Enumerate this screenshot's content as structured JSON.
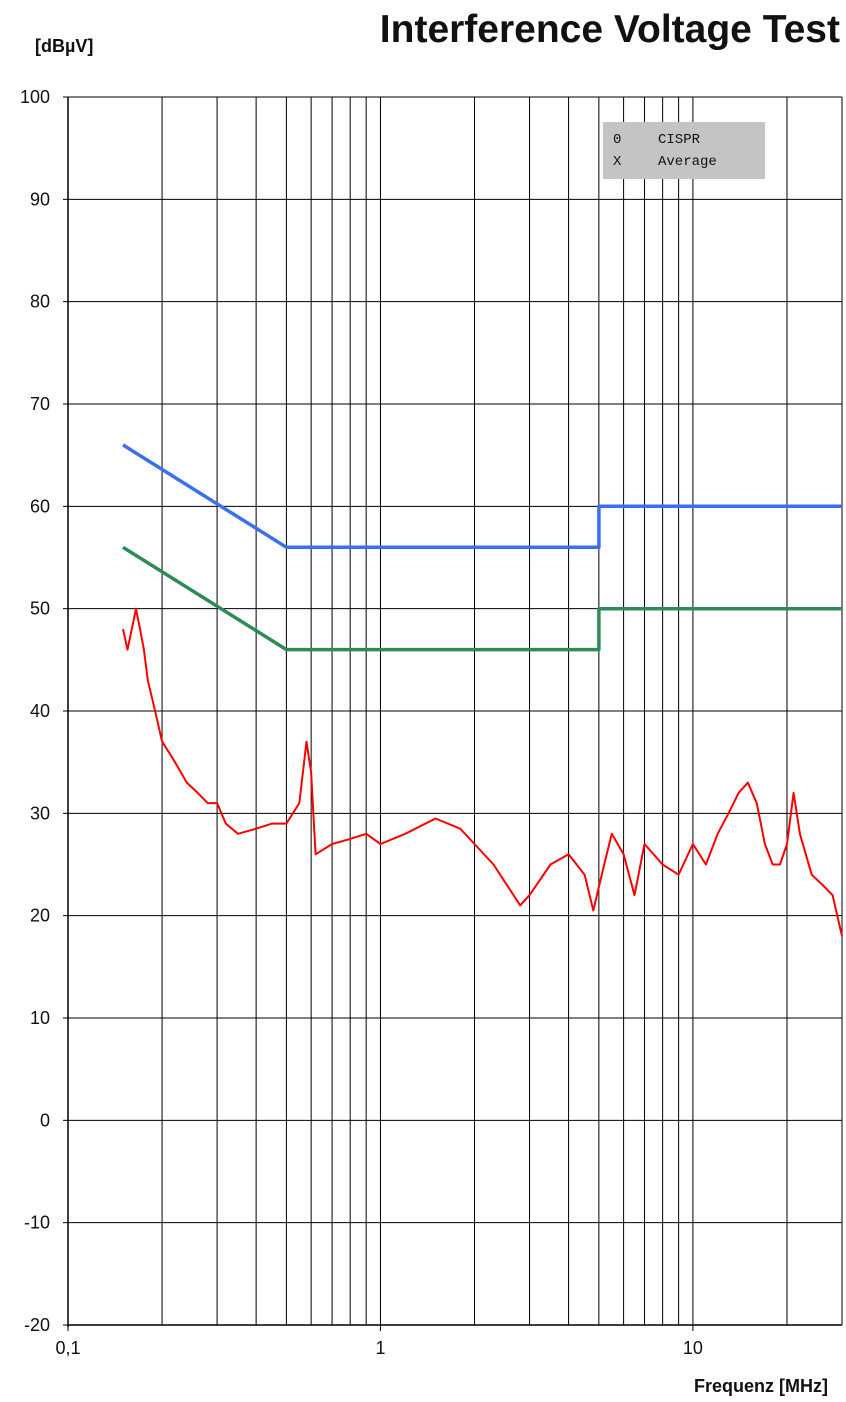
{
  "chart_data": {
    "type": "line",
    "title": "Interference Voltage Test",
    "ylabel": "[dBµV]",
    "xlabel": "Frequenz [MHz]",
    "x_scale": "log",
    "xlim": [
      0.1,
      30
    ],
    "ylim": [
      -20,
      100
    ],
    "y_ticks": [
      -20,
      -10,
      0,
      10,
      20,
      30,
      40,
      50,
      60,
      70,
      80,
      90,
      100
    ],
    "y_tick_labels": [
      "-20",
      "-10",
      "0",
      "10",
      "20",
      "30",
      "40",
      "50",
      "60",
      "70",
      "80",
      "90",
      "100"
    ],
    "x_ticks": [
      0.1,
      1,
      10
    ],
    "x_tick_labels": [
      "0,1",
      "1",
      "10"
    ],
    "grid": true,
    "legend_position": "top-right",
    "legend": [
      {
        "marker": "0",
        "label": "CISPR"
      },
      {
        "marker": "X",
        "label": "Average"
      }
    ],
    "series": [
      {
        "color": "#3a6ff0",
        "x": [
          0.15,
          0.5,
          5,
          5,
          30
        ],
        "values": [
          66,
          56,
          56,
          60,
          60
        ]
      },
      {
        "color": "#2e8b57",
        "x": [
          0.15,
          0.5,
          5,
          5,
          30
        ],
        "values": [
          56,
          46,
          46,
          50,
          50
        ]
      },
      {
        "color": "#ff0000",
        "x": [
          0.15,
          0.155,
          0.16,
          0.165,
          0.17,
          0.175,
          0.18,
          0.19,
          0.2,
          0.21,
          0.22,
          0.24,
          0.26,
          0.28,
          0.3,
          0.32,
          0.35,
          0.4,
          0.45,
          0.5,
          0.55,
          0.58,
          0.6,
          0.62,
          0.7,
          0.8,
          0.9,
          1,
          1.2,
          1.5,
          1.8,
          2,
          2.3,
          2.8,
          3,
          3.5,
          4,
          4.5,
          4.8,
          5.2,
          5.5,
          6,
          6.5,
          7,
          8,
          9,
          10,
          11,
          12,
          13,
          14,
          15,
          16,
          17,
          18,
          19,
          20,
          21,
          22,
          24,
          26,
          28,
          30
        ],
        "values": [
          48,
          46,
          48,
          50,
          48,
          46,
          43,
          40,
          37,
          36,
          35,
          33,
          32,
          31,
          31,
          29,
          28,
          28.5,
          29,
          29,
          31,
          37,
          34,
          26,
          27,
          27.5,
          28,
          27,
          28,
          29.5,
          28.5,
          27,
          25,
          21,
          22,
          25,
          26,
          24,
          20.5,
          25,
          28,
          26,
          22,
          27,
          25,
          24,
          27,
          25,
          28,
          30,
          32,
          33,
          31,
          27,
          25,
          25,
          27,
          32,
          28,
          24,
          23,
          22,
          18
        ]
      }
    ]
  }
}
